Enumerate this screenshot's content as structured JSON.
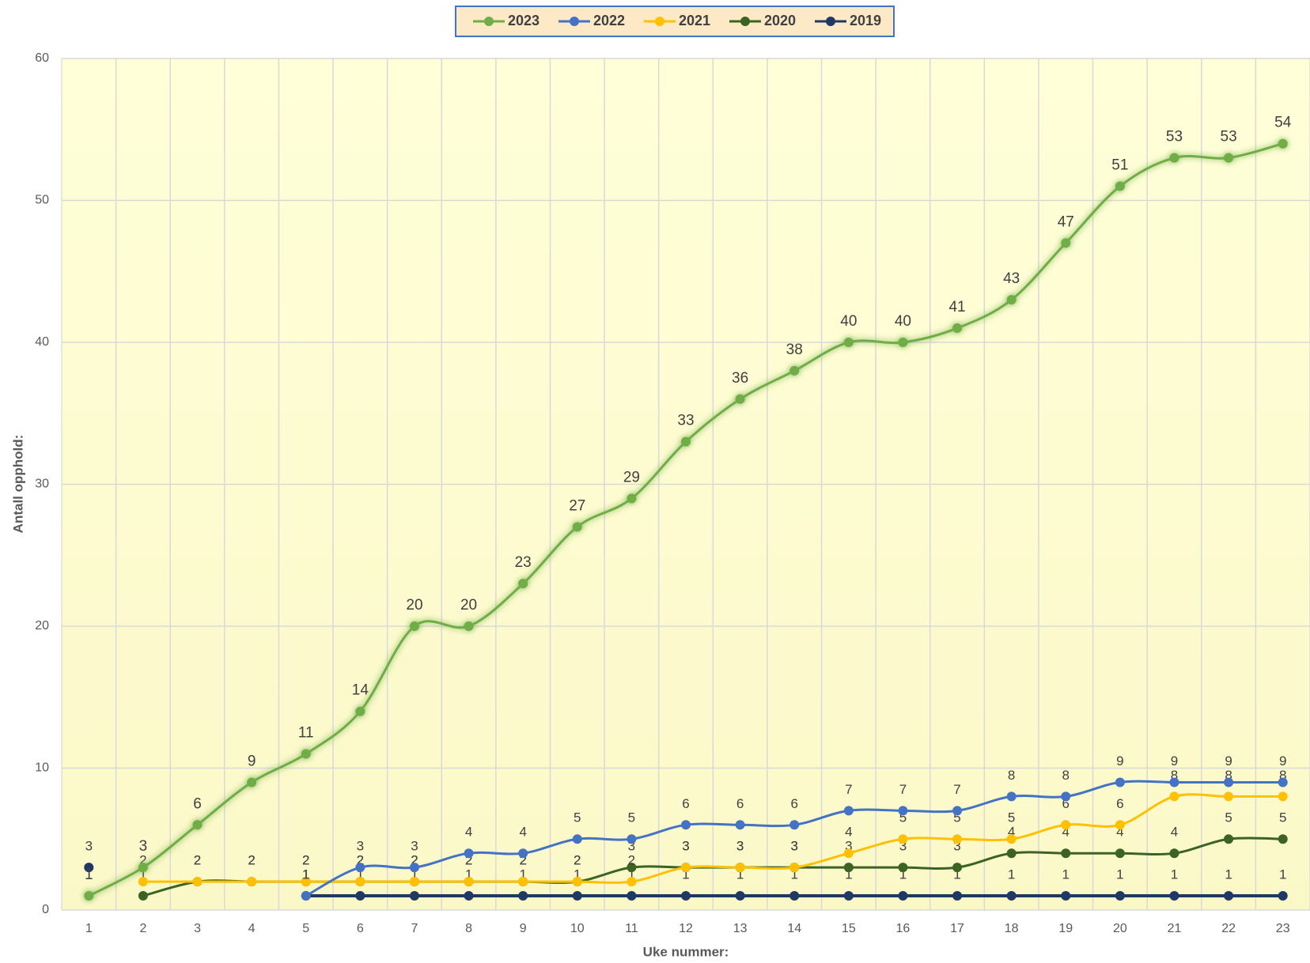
{
  "chart_data": {
    "type": "line",
    "x_label": "Uke nummer:",
    "y_label": "Antall opphold:",
    "categories": [
      1,
      2,
      3,
      4,
      5,
      6,
      7,
      8,
      9,
      10,
      11,
      12,
      13,
      14,
      15,
      16,
      17,
      18,
      19,
      20,
      21,
      22,
      23
    ],
    "series": [
      {
        "name": "2023",
        "color": "#70ad47",
        "values": [
          1,
          3,
          6,
          9,
          11,
          14,
          20,
          20,
          23,
          27,
          29,
          33,
          36,
          38,
          40,
          40,
          41,
          43,
          47,
          51,
          53,
          53,
          54
        ]
      },
      {
        "name": "2022",
        "color": "#4472c4",
        "values": [
          null,
          null,
          null,
          null,
          1,
          3,
          3,
          4,
          4,
          5,
          5,
          6,
          6,
          6,
          7,
          7,
          7,
          8,
          8,
          9,
          9,
          9,
          9
        ]
      },
      {
        "name": "2021",
        "color": "#ffc000",
        "values": [
          null,
          2,
          2,
          2,
          2,
          2,
          2,
          2,
          2,
          2,
          2,
          3,
          3,
          3,
          4,
          5,
          5,
          5,
          6,
          6,
          8,
          8,
          8
        ]
      },
      {
        "name": "2020",
        "color": "#3b6324",
        "values": [
          null,
          1,
          2,
          2,
          2,
          2,
          2,
          2,
          2,
          2,
          3,
          3,
          3,
          3,
          3,
          3,
          3,
          4,
          4,
          4,
          4,
          5,
          5
        ]
      },
      {
        "name": "2019",
        "color": "#203864",
        "values": [
          3,
          null,
          null,
          null,
          1,
          1,
          1,
          1,
          1,
          1,
          1,
          1,
          1,
          1,
          1,
          1,
          1,
          1,
          1,
          1,
          1,
          1,
          1
        ]
      }
    ],
    "ylim": [
      0,
      60
    ],
    "yticks": [
      0,
      10,
      20,
      30,
      40,
      50,
      60
    ],
    "grid": true,
    "legend": "top",
    "smooth": true
  }
}
